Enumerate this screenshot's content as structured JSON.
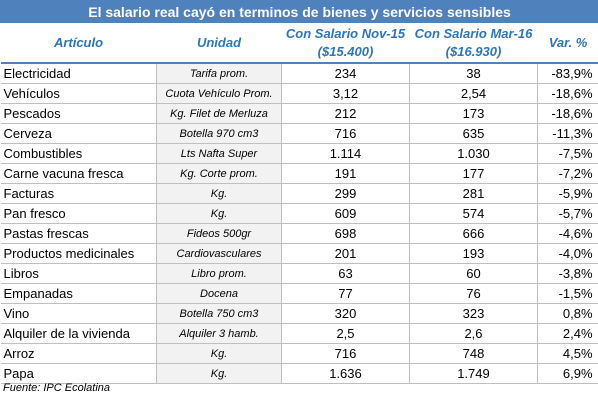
{
  "title": "El salario real cayó en terminos de bienes y servicios sensibles",
  "headers": {
    "articulo": "Artículo",
    "unidad": "Unidad",
    "nov_line1": "Con Salario Nov-15",
    "nov_line2": "($15.400)",
    "mar_line1": "Con Salario Mar-16",
    "mar_line2": "($16.930)",
    "var": "Var. %"
  },
  "footnote": "Fuente: IPC Ecolatina",
  "colors": {
    "header_bg": "#4f81bd",
    "header_text": "#2e75b6",
    "negative": "#c00000"
  },
  "chart_data": {
    "type": "table",
    "title": "El salario real cayó en terminos de bienes y servicios sensibles",
    "columns": [
      "Artículo",
      "Unidad",
      "Con Salario Nov-15 ($15.400)",
      "Con Salario Mar-16 ($16.930)",
      "Var. %"
    ],
    "rows": [
      {
        "articulo": "Electricidad",
        "unidad": "Tarifa prom.",
        "nov": "234",
        "mar": "38",
        "var": "-83,9%",
        "neg": true
      },
      {
        "articulo": "Vehículos",
        "unidad": "Cuota Vehículo Prom.",
        "nov": "3,12",
        "mar": "2,54",
        "var": "-18,6%",
        "neg": true
      },
      {
        "articulo": "Pescados",
        "unidad": "Kg. Filet de Merluza",
        "nov": "212",
        "mar": "173",
        "var": "-18,6%",
        "neg": true
      },
      {
        "articulo": "Cerveza",
        "unidad": "Botella 970 cm3",
        "nov": "716",
        "mar": "635",
        "var": "-11,3%",
        "neg": true
      },
      {
        "articulo": "Combustibles",
        "unidad": "Lts Nafta Super",
        "nov": "1.114",
        "mar": "1.030",
        "var": "-7,5%",
        "neg": true
      },
      {
        "articulo": "Carne vacuna fresca",
        "unidad": "Kg. Corte prom.",
        "nov": "191",
        "mar": "177",
        "var": "-7,2%",
        "neg": true
      },
      {
        "articulo": "Facturas",
        "unidad": "Kg.",
        "nov": "299",
        "mar": "281",
        "var": "-5,9%",
        "neg": true
      },
      {
        "articulo": "Pan fresco",
        "unidad": "Kg.",
        "nov": "609",
        "mar": "574",
        "var": "-5,7%",
        "neg": true
      },
      {
        "articulo": "Pastas frescas",
        "unidad": "Fideos 500gr",
        "nov": "698",
        "mar": "666",
        "var": "-4,6%",
        "neg": true
      },
      {
        "articulo": "Productos medicinales",
        "unidad": "Cardiovasculares",
        "nov": "201",
        "mar": "193",
        "var": "-4,0%",
        "neg": true
      },
      {
        "articulo": "Libros",
        "unidad": "Libro prom.",
        "nov": "63",
        "mar": "60",
        "var": "-3,8%",
        "neg": true
      },
      {
        "articulo": "Empanadas",
        "unidad": "Docena",
        "nov": "77",
        "mar": "76",
        "var": "-1,5%",
        "neg": true
      },
      {
        "articulo": "Vino",
        "unidad": "Botella 750 cm3",
        "nov": "320",
        "mar": "323",
        "var": "0,8%",
        "neg": false
      },
      {
        "articulo": "Alquiler de la vivienda",
        "unidad": "Alquiler 3 hamb.",
        "nov": "2,5",
        "mar": "2,6",
        "var": "2,4%",
        "neg": false
      },
      {
        "articulo": "Arroz",
        "unidad": "Kg.",
        "nov": "716",
        "mar": "748",
        "var": "4,5%",
        "neg": false
      },
      {
        "articulo": "Papa",
        "unidad": "Kg.",
        "nov": "1.636",
        "mar": "1.749",
        "var": "6,9%",
        "neg": false
      }
    ]
  }
}
